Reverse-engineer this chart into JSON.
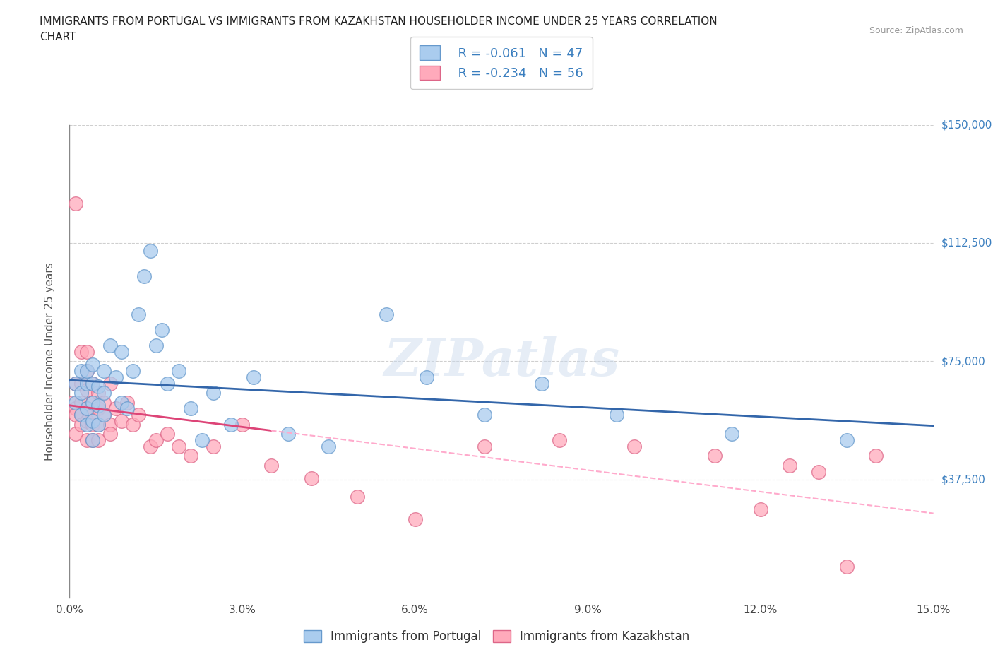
{
  "title_line1": "IMMIGRANTS FROM PORTUGAL VS IMMIGRANTS FROM KAZAKHSTAN HOUSEHOLDER INCOME UNDER 25 YEARS CORRELATION",
  "title_line2": "CHART",
  "source_text": "Source: ZipAtlas.com",
  "ylabel": "Householder Income Under 25 years",
  "xlim": [
    0,
    0.15
  ],
  "ylim": [
    0,
    150000
  ],
  "xticks": [
    0.0,
    0.03,
    0.06,
    0.09,
    0.12,
    0.15
  ],
  "xticklabels": [
    "0.0%",
    "3.0%",
    "6.0%",
    "9.0%",
    "12.0%",
    "15.0%"
  ],
  "yticks": [
    0,
    37500,
    75000,
    112500,
    150000
  ],
  "ytick_labels_right": [
    "",
    "$37,500",
    "$75,000",
    "$112,500",
    "$150,000"
  ],
  "portugal_color": "#aaccee",
  "portugal_edge_color": "#6699cc",
  "kazakhstan_color": "#ffaabb",
  "kazakhstan_edge_color": "#dd6688",
  "portugal_line_color": "#3366aa",
  "kazakhstan_line_color": "#dd4477",
  "kazakhstan_line_dash_color": "#ffaacc",
  "r_portugal": -0.061,
  "n_portugal": 47,
  "r_kazakhstan": -0.234,
  "n_kazakhstan": 56,
  "portugal_x": [
    0.001,
    0.001,
    0.002,
    0.002,
    0.002,
    0.003,
    0.003,
    0.003,
    0.003,
    0.004,
    0.004,
    0.004,
    0.004,
    0.004,
    0.005,
    0.005,
    0.005,
    0.006,
    0.006,
    0.006,
    0.007,
    0.008,
    0.009,
    0.009,
    0.01,
    0.011,
    0.012,
    0.013,
    0.014,
    0.015,
    0.016,
    0.017,
    0.019,
    0.021,
    0.023,
    0.025,
    0.028,
    0.032,
    0.038,
    0.045,
    0.055,
    0.062,
    0.072,
    0.082,
    0.095,
    0.115,
    0.135
  ],
  "portugal_y": [
    62000,
    68000,
    58000,
    65000,
    72000,
    55000,
    60000,
    68000,
    72000,
    50000,
    56000,
    62000,
    68000,
    74000,
    55000,
    61000,
    67000,
    58000,
    65000,
    72000,
    80000,
    70000,
    62000,
    78000,
    60000,
    72000,
    90000,
    102000,
    110000,
    80000,
    85000,
    68000,
    72000,
    60000,
    50000,
    65000,
    55000,
    70000,
    52000,
    48000,
    90000,
    70000,
    58000,
    68000,
    58000,
    52000,
    50000
  ],
  "kazakhstan_x": [
    0.0005,
    0.001,
    0.001,
    0.001,
    0.001,
    0.001,
    0.002,
    0.002,
    0.002,
    0.002,
    0.002,
    0.003,
    0.003,
    0.003,
    0.003,
    0.003,
    0.003,
    0.004,
    0.004,
    0.004,
    0.004,
    0.004,
    0.005,
    0.005,
    0.005,
    0.005,
    0.006,
    0.006,
    0.007,
    0.007,
    0.007,
    0.008,
    0.009,
    0.01,
    0.011,
    0.012,
    0.014,
    0.015,
    0.017,
    0.019,
    0.021,
    0.025,
    0.03,
    0.035,
    0.042,
    0.05,
    0.06,
    0.072,
    0.085,
    0.098,
    0.112,
    0.12,
    0.125,
    0.13,
    0.135,
    0.14
  ],
  "kazakhstan_y": [
    62000,
    125000,
    68000,
    60000,
    58000,
    52000,
    78000,
    68000,
    62000,
    58000,
    55000,
    78000,
    72000,
    66000,
    60000,
    56000,
    50000,
    68000,
    62000,
    58000,
    55000,
    50000,
    65000,
    60000,
    55000,
    50000,
    62000,
    58000,
    68000,
    55000,
    52000,
    60000,
    56000,
    62000,
    55000,
    58000,
    48000,
    50000,
    52000,
    48000,
    45000,
    48000,
    55000,
    42000,
    38000,
    32000,
    25000,
    48000,
    50000,
    48000,
    45000,
    28000,
    42000,
    40000,
    10000,
    45000
  ],
  "watermark": "ZIPatlas",
  "background_color": "#ffffff",
  "grid_color": "#bbbbbb",
  "legend_color": "#3a7ebf"
}
